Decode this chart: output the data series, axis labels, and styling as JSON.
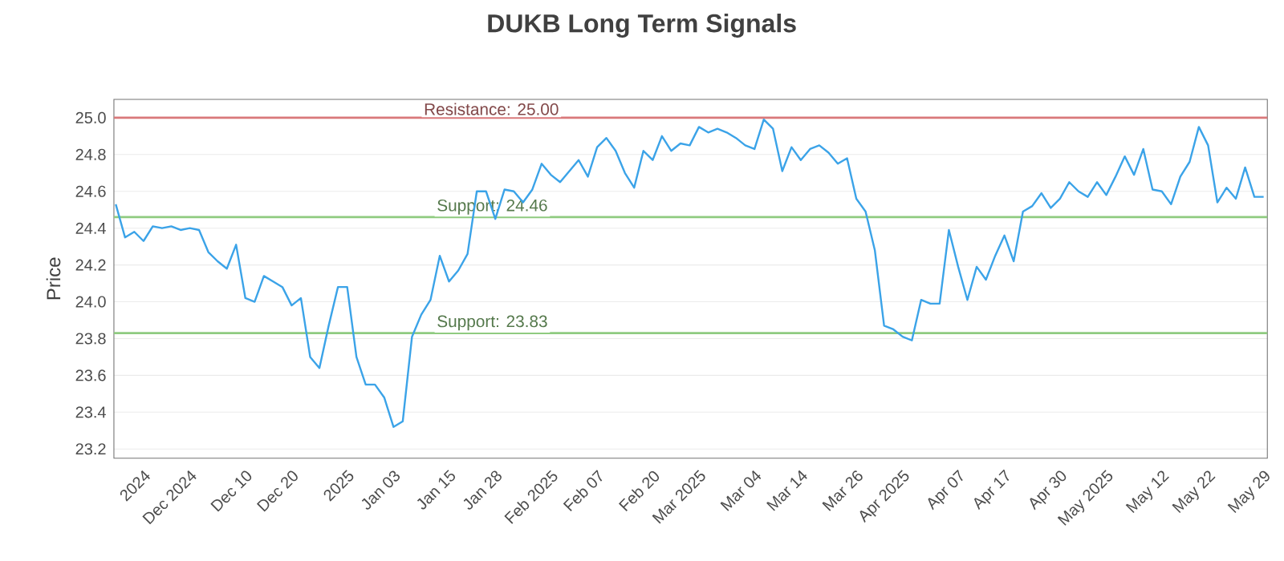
{
  "chart_data": {
    "type": "line",
    "title": "DUKB Long Term Signals",
    "ylabel": "Price",
    "categories": [
      null,
      null,
      null,
      "2024",
      null,
      null,
      null,
      null,
      "Dec 2024",
      null,
      null,
      null,
      null,
      null,
      "Dec 10",
      null,
      null,
      null,
      null,
      "Dec 20",
      null,
      null,
      null,
      null,
      null,
      "2025",
      null,
      null,
      null,
      null,
      "Jan 03",
      null,
      null,
      null,
      null,
      null,
      "Jan 15",
      null,
      null,
      null,
      null,
      "Jan 28",
      null,
      null,
      null,
      null,
      null,
      "Feb 2025",
      null,
      null,
      null,
      null,
      "Feb 07",
      null,
      null,
      null,
      null,
      null,
      "Feb 20",
      null,
      null,
      null,
      null,
      "Mar 2025",
      null,
      null,
      null,
      null,
      null,
      "Mar 04",
      null,
      null,
      null,
      null,
      "Mar 14",
      null,
      null,
      null,
      null,
      null,
      "Mar 26",
      null,
      null,
      null,
      null,
      "Apr 2025",
      null,
      null,
      null,
      null,
      null,
      "Apr 07",
      null,
      null,
      null,
      null,
      "Apr 17",
      null,
      null,
      null,
      null,
      null,
      "Apr 30",
      null,
      null,
      null,
      null,
      "May 2025",
      null,
      null,
      null,
      null,
      null,
      "May 12",
      null,
      null,
      null,
      null,
      "May 22",
      null,
      null,
      null,
      null,
      null,
      "May 29"
    ],
    "values": [
      24.53,
      24.35,
      24.38,
      24.33,
      24.41,
      24.4,
      24.41,
      24.39,
      24.4,
      24.39,
      24.27,
      24.22,
      24.18,
      24.31,
      24.02,
      24.0,
      24.14,
      24.11,
      24.08,
      23.98,
      24.02,
      23.7,
      23.64,
      23.87,
      24.08,
      24.08,
      23.7,
      23.55,
      23.55,
      23.48,
      23.32,
      23.35,
      23.81,
      23.93,
      24.01,
      24.25,
      24.11,
      24.17,
      24.26,
      24.6,
      24.6,
      24.45,
      24.61,
      24.6,
      24.54,
      24.61,
      24.75,
      24.69,
      24.65,
      24.71,
      24.77,
      24.68,
      24.84,
      24.89,
      24.82,
      24.7,
      24.62,
      24.82,
      24.77,
      24.9,
      24.82,
      24.86,
      24.85,
      24.95,
      24.92,
      24.94,
      24.92,
      24.89,
      24.85,
      24.83,
      24.99,
      24.94,
      24.71,
      24.84,
      24.77,
      24.83,
      24.85,
      24.81,
      24.75,
      24.78,
      24.56,
      24.49,
      24.28,
      23.87,
      23.85,
      23.81,
      23.79,
      24.01,
      23.99,
      23.99,
      24.39,
      24.19,
      24.01,
      24.19,
      24.12,
      24.25,
      24.36,
      24.22,
      24.49,
      24.52,
      24.59,
      24.51,
      24.56,
      24.65,
      24.6,
      24.57,
      24.65,
      24.58,
      24.68,
      24.79,
      24.69,
      24.83,
      24.61,
      24.6,
      24.53,
      24.68,
      24.76,
      24.95,
      24.85,
      24.54,
      24.62,
      24.56,
      24.73,
      24.57,
      24.57
    ],
    "color": "#3ba3e8",
    "ylim": [
      23.15,
      25.1
    ],
    "yticks": [
      23.2,
      23.4,
      23.6,
      23.8,
      {
        "value": 24.0,
        "label": "24.0"
      },
      24.2,
      24.4,
      24.6,
      24.8,
      {
        "value": 25.0,
        "label": "25.0"
      }
    ],
    "grid": "y",
    "marker": "none",
    "line_style": "solid",
    "ref_lines": [
      {
        "axis": "y",
        "value": 25.0,
        "label": "Resistance: 25.00",
        "color": "#d9787a"
      },
      {
        "axis": "y",
        "value": 24.46,
        "label": "Support: 24.46",
        "color": "#8fcb80"
      },
      {
        "axis": "y",
        "value": 23.83,
        "label": "Support: 23.83",
        "color": "#8fcb80"
      }
    ]
  }
}
